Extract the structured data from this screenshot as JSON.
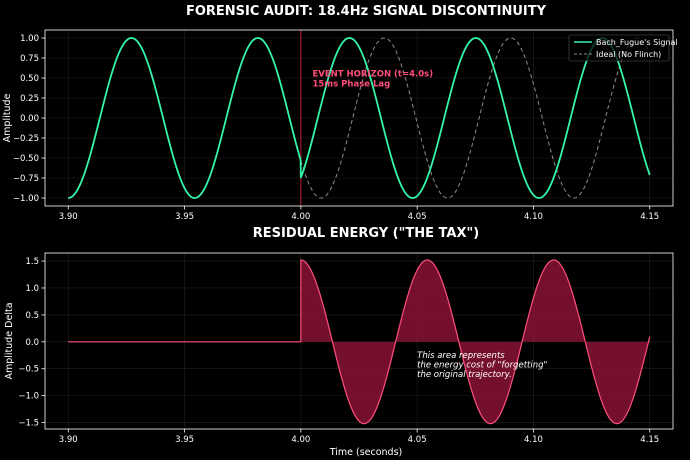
{
  "chart_data": [
    {
      "type": "line",
      "title": "FORENSIC AUDIT: 18.4Hz SIGNAL DISCONTINUITY",
      "xlabel": "",
      "ylabel": "Amplitude",
      "xlim": [
        3.89,
        4.16
      ],
      "ylim": [
        -1.1,
        1.1
      ],
      "xticks": [
        3.9,
        3.95,
        4.0,
        4.05,
        4.1,
        4.15
      ],
      "xtick_labels": [
        "3.90",
        "3.95",
        "4.00",
        "4.05",
        "4.10",
        "4.15"
      ],
      "yticks": [
        1.0,
        0.75,
        0.5,
        0.25,
        0.0,
        -0.25,
        -0.5,
        -0.75,
        -1.0
      ],
      "ytick_labels": [
        "1.00",
        "0.75",
        "0.50",
        "0.25",
        "0.00",
        "−0.25",
        "−0.50",
        "−0.75",
        "−1.00"
      ],
      "grid": true,
      "legend": "top-right",
      "frequency_hz": 18.4,
      "event_time": 4.0,
      "phase_lag_s": 0.015,
      "x_range": [
        3.9,
        4.15
      ],
      "series": [
        {
          "name": "Bach_Fugue's Signal",
          "color": "#35f5a9",
          "style": "solid"
        },
        {
          "name": "Ideal (No Flinch)",
          "color": "#8c8c8c",
          "style": "dashed"
        }
      ],
      "annotations": [
        {
          "x": 4.005,
          "y": 0.63,
          "lines": [
            "EVENT HORIZON (t=4.0s)",
            "15ms Phase Lag"
          ],
          "color": "#ff4f7b"
        }
      ],
      "vline": {
        "x": 4.0,
        "color": "#d0203a"
      }
    },
    {
      "type": "area",
      "title": "RESIDUAL ENERGY (\"THE TAX\")",
      "xlabel": "Time (seconds)",
      "ylabel": "Amplitude Delta",
      "xlim": [
        3.89,
        4.16
      ],
      "ylim": [
        -1.62,
        1.65
      ],
      "xticks": [
        3.9,
        3.95,
        4.0,
        4.05,
        4.1,
        4.15
      ],
      "xtick_labels": [
        "3.90",
        "3.95",
        "4.00",
        "4.05",
        "4.10",
        "4.15"
      ],
      "yticks": [
        1.5,
        1.0,
        0.5,
        0.0,
        -0.5,
        -1.0,
        -1.5
      ],
      "ytick_labels": [
        "1.5",
        "1.0",
        "0.5",
        "0.0",
        "−0.5",
        "−1.0",
        "−1.5"
      ],
      "grid": true,
      "x_range": [
        3.9,
        4.15
      ],
      "peak_delta": 1.52,
      "line_color": "#ff4f7b",
      "fill_color": "#8a1236",
      "annotations": [
        {
          "x": 4.05,
          "y": -0.13,
          "lines": [
            "This area represents",
            "the energy cost of \"forgetting\"",
            "the original trajectory."
          ],
          "color": "#ffffff"
        }
      ]
    }
  ]
}
